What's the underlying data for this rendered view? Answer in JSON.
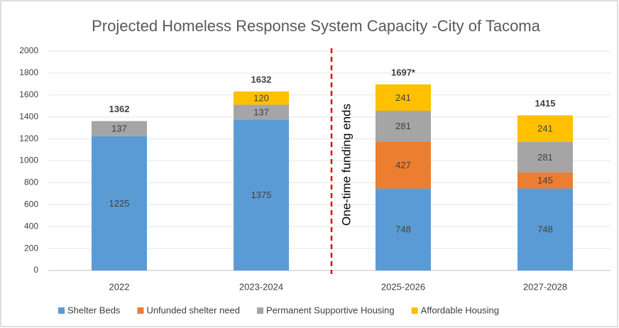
{
  "chart_data": {
    "type": "stacked_bar",
    "title": "Projected Homeless Response System Capacity -City of Tacoma",
    "categories": [
      "2022",
      "2023-2024",
      "2025-2026",
      "2027-2028"
    ],
    "series": [
      {
        "name": "Shelter Beds",
        "color": "#5b9bd5",
        "values": [
          1225,
          1375,
          748,
          748
        ]
      },
      {
        "name": "Unfunded shelter need",
        "color": "#ed7d31",
        "values": [
          null,
          null,
          427,
          145
        ]
      },
      {
        "name": "Permanent Supportive Housing",
        "color": "#a5a5a5",
        "values": [
          137,
          137,
          281,
          281
        ]
      },
      {
        "name": "Affordable Housing",
        "color": "#ffc000",
        "values": [
          null,
          120,
          241,
          241
        ]
      }
    ],
    "totals": [
      1362,
      1632,
      1697,
      1415
    ],
    "total_labels": [
      "1362",
      "1632",
      "1697*",
      "1415"
    ],
    "annotation": "One-time funding ends",
    "ylim": [
      0,
      2000
    ],
    "yticks": [
      0,
      200,
      400,
      600,
      800,
      1000,
      1200,
      1400,
      1600,
      1800,
      2000
    ],
    "grid": true,
    "legend": "bottom"
  }
}
